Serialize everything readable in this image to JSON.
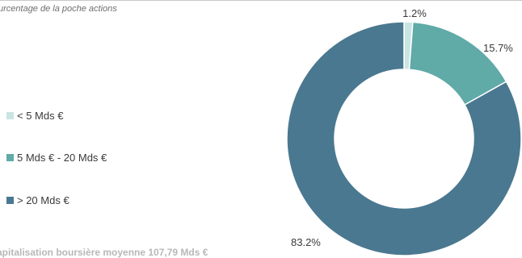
{
  "header": {
    "subtitle": "urcentage de la poche actions"
  },
  "footer": {
    "note": "apitalisation boursière moyenne 107,79 Mds €"
  },
  "chart_data": {
    "type": "pie",
    "subtype": "donut",
    "title": "",
    "legend_position": "left",
    "slices": [
      {
        "label": "< 5 Mds €",
        "value": 1.2,
        "value_label": "1.2%",
        "color": "#c9e5e3"
      },
      {
        "label": "5 Mds € - 20 Mds €",
        "value": 15.7,
        "value_label": "15.7%",
        "color": "#60aaa8"
      },
      {
        "label": "> 20 Mds €",
        "value": 83.2,
        "value_label": "83.2%",
        "color": "#4a7890"
      }
    ]
  }
}
